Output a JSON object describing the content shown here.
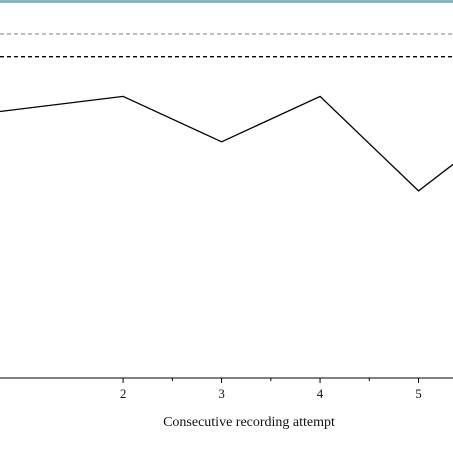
{
  "chart_data": {
    "type": "line",
    "title": "",
    "xlabel": "Consecutive recording attempt",
    "ylabel": "",
    "x_ticks": [
      "2",
      "3",
      "4",
      "5"
    ],
    "xlim": [
      0.75,
      5.35
    ],
    "ylim": [
      0,
      1
    ],
    "series": [
      {
        "x": [
          0.75,
          2,
          3,
          4,
          5,
          5.35
        ],
        "y": [
          0.705,
          0.745,
          0.625,
          0.745,
          0.495,
          0.565
        ],
        "color": "#000000"
      }
    ],
    "reference_lines": [
      {
        "y": 0.91,
        "style": "dashed",
        "color": "#999999"
      },
      {
        "y": 0.85,
        "style": "dashed",
        "color": "#000000"
      }
    ],
    "frame_top_color": "#8ab4c4",
    "grid": false
  }
}
